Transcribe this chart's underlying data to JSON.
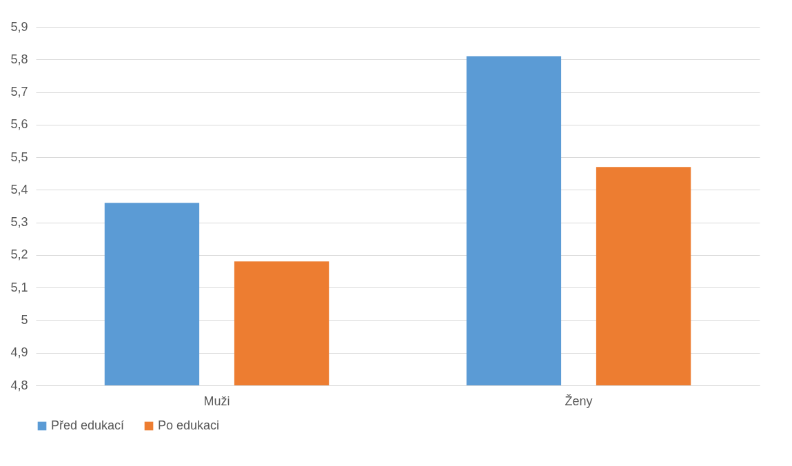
{
  "chart_data": {
    "type": "bar",
    "categories": [
      "Muži",
      "Ženy"
    ],
    "series": [
      {
        "name": "Před edukací",
        "color": "#5b9bd5",
        "values": [
          5.36,
          5.81
        ]
      },
      {
        "name": "Po edukaci",
        "color": "#ed7d31",
        "values": [
          5.18,
          5.47
        ]
      }
    ],
    "ylim": [
      4.8,
      5.9
    ],
    "yticks": [
      {
        "value": 4.8,
        "label": "4,8"
      },
      {
        "value": 4.9,
        "label": "4,9"
      },
      5,
      {
        "value": 5.1,
        "label": "5,1"
      },
      {
        "value": 5.2,
        "label": "5,2"
      },
      {
        "value": 5.3,
        "label": "5,3"
      },
      {
        "value": 5.4,
        "label": "5,4"
      },
      {
        "value": 5.5,
        "label": "5,5"
      },
      {
        "value": 5.6,
        "label": "5,6"
      },
      {
        "value": 5.7,
        "label": "5,7"
      },
      {
        "value": 5.8,
        "label": "5,8"
      },
      {
        "value": 5.9,
        "label": "5,9"
      }
    ],
    "grid": "y",
    "legend": "bottom"
  }
}
